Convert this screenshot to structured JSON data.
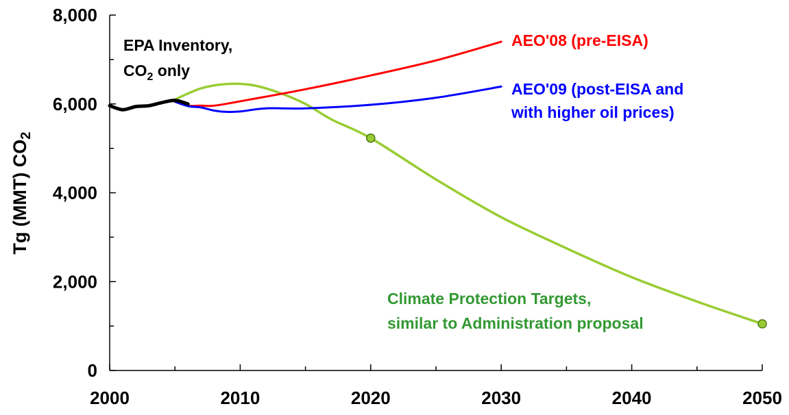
{
  "chart_data": {
    "type": "line",
    "title": "",
    "ylabel": "Tg (MMT) CO2",
    "ylabel_main": "Tg (MMT) CO",
    "ylabel_sub": "2",
    "xlabel": "",
    "xlim": [
      2000,
      2050
    ],
    "ylim": [
      0,
      8000
    ],
    "x_ticks": [
      2000,
      2010,
      2020,
      2030,
      2040,
      2050
    ],
    "x_tick_labels": [
      "2000",
      "2010",
      "2020",
      "2030",
      "2040",
      "2050"
    ],
    "y_ticks": [
      0,
      2000,
      4000,
      6000,
      8000
    ],
    "y_tick_labels": [
      "0",
      "2,000",
      "4,000",
      "6,000",
      "8,000"
    ],
    "grid": false,
    "series": [
      {
        "key": "epa",
        "color": "#000000",
        "x": [
          2000,
          2001,
          2002,
          2003,
          2004,
          2005,
          2006
        ],
        "y": [
          5960,
          5870,
          5940,
          5960,
          6030,
          6080,
          6000
        ]
      },
      {
        "key": "aeo08",
        "color": "#ff0000",
        "x": [
          2005,
          2006,
          2007,
          2008,
          2010,
          2015,
          2020,
          2025,
          2030
        ],
        "y": [
          6050,
          5960,
          5960,
          5960,
          6060,
          6330,
          6640,
          6980,
          7400
        ]
      },
      {
        "key": "aeo09",
        "color": "#0000ff",
        "x": [
          2005,
          2006,
          2007,
          2008,
          2009,
          2010,
          2012,
          2015,
          2020,
          2025,
          2030
        ],
        "y": [
          6050,
          5950,
          5920,
          5850,
          5820,
          5830,
          5900,
          5900,
          5980,
          6140,
          6390
        ]
      },
      {
        "key": "climate",
        "color": "#99cc33",
        "x": [
          2005,
          2007,
          2009,
          2011,
          2013,
          2015,
          2017,
          2020,
          2025,
          2030,
          2035,
          2040,
          2045,
          2050
        ],
        "y": [
          6100,
          6350,
          6450,
          6420,
          6250,
          6000,
          5650,
          5230,
          4300,
          3450,
          2750,
          2100,
          1550,
          1050
        ]
      }
    ],
    "markers": [
      {
        "x": 2020,
        "y": 5230,
        "color": "#99cc33"
      },
      {
        "x": 2050,
        "y": 1050,
        "color": "#99cc33"
      }
    ],
    "annotations": {
      "epa_line1": "EPA Inventory,",
      "epa_line2_pre": "CO",
      "epa_line2_sub": "2",
      "epa_line2_post": " only",
      "aeo08": "AEO'08 (pre-EISA)",
      "aeo09_line1": "AEO'09 (post-EISA and",
      "aeo09_line2": "with higher oil prices)",
      "climate_line1": "Climate Protection Targets,",
      "climate_line2": "similar to Administration proposal"
    },
    "colors": {
      "epa": "#000000",
      "aeo08": "#ff0000",
      "aeo09": "#0000ff",
      "climate_line": "#99cc33",
      "climate_text": "#339933"
    }
  }
}
